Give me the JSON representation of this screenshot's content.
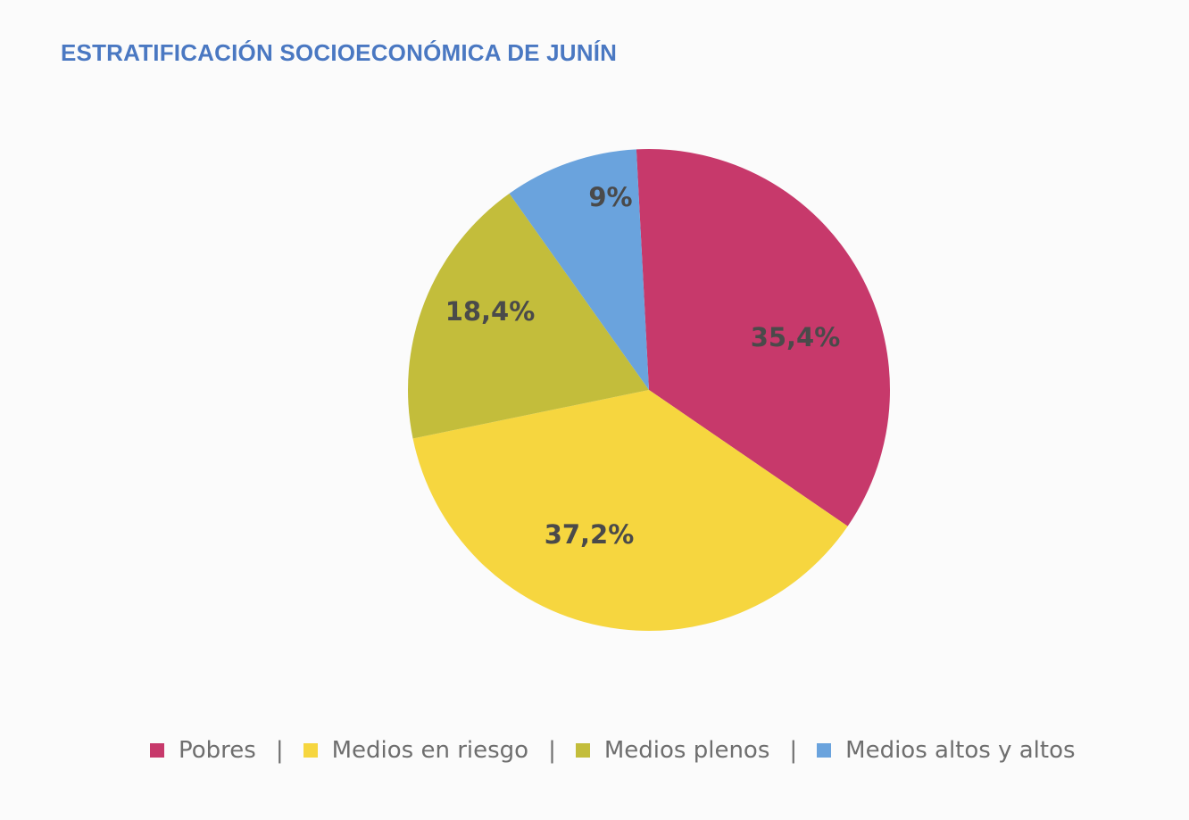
{
  "chart_data": {
    "type": "pie",
    "title": "ESTRATIFICACIÓN SOCIOECONÓMICA DE JUNÍN",
    "slices": [
      {
        "name": "Pobres",
        "value": 35.4,
        "label": "35,4%",
        "color": "#c7396b"
      },
      {
        "name": "Medios en riesgo",
        "value": 37.2,
        "label": "37,2%",
        "color": "#f6d63f"
      },
      {
        "name": "Medios plenos",
        "value": 18.4,
        "label": "18,4%",
        "color": "#c3bd3b"
      },
      {
        "name": "Medios altos y altos",
        "value": 9,
        "label": "9%",
        "color": "#6aa3dd"
      }
    ],
    "legend_position": "bottom",
    "legend_separator": "|"
  }
}
